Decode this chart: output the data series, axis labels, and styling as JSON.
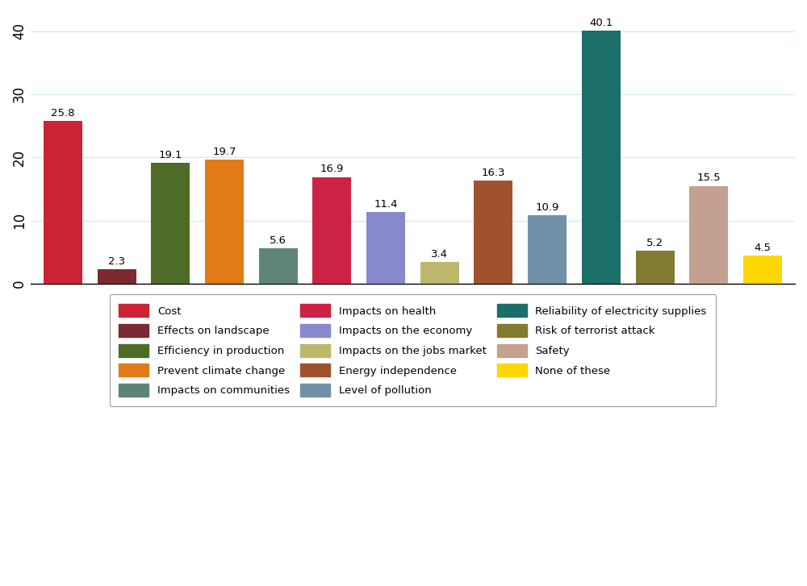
{
  "values": [
    25.8,
    2.3,
    19.1,
    19.7,
    5.6,
    16.9,
    11.4,
    3.4,
    16.3,
    10.9,
    40.1,
    5.2,
    15.5,
    4.5
  ],
  "colors": [
    "#CC2233",
    "#7A2A30",
    "#4E6B28",
    "#E07B18",
    "#5E8478",
    "#CC2244",
    "#8888CC",
    "#BDB76B",
    "#A0522D",
    "#7090A8",
    "#1B6E6A",
    "#827B30",
    "#C4A090",
    "#FFD700"
  ],
  "x_positions": [
    1,
    2,
    3,
    4,
    5,
    6,
    7,
    8,
    9,
    10,
    11,
    12,
    13,
    14
  ],
  "legend_entries_col1": [
    {
      "label": "Cost",
      "color": "#CC2233"
    },
    {
      "label": "Prevent climate change",
      "color": "#E07B18"
    },
    {
      "label": "Impacts on the economy",
      "color": "#8888CC"
    },
    {
      "label": "Level of pollution",
      "color": "#7090A8"
    },
    {
      "label": "Safety",
      "color": "#C4A090"
    }
  ],
  "legend_entries_col2": [
    {
      "label": "Effects on landscape",
      "color": "#7A2A30"
    },
    {
      "label": "Impacts on communities",
      "color": "#5E8478"
    },
    {
      "label": "Impacts on the jobs market",
      "color": "#BDB76B"
    },
    {
      "label": "Reliability of electricity supplies",
      "color": "#1B6E6A"
    },
    {
      "label": "None of these",
      "color": "#FFD700"
    }
  ],
  "legend_entries_col3": [
    {
      "label": "Efficiency in production",
      "color": "#4E6B28"
    },
    {
      "label": "Impacts on health",
      "color": "#CC2244"
    },
    {
      "label": "Energy independence",
      "color": "#A0522D"
    },
    {
      "label": "Risk of terrorist attack",
      "color": "#827B30"
    }
  ],
  "ylim": [
    0,
    43
  ],
  "yticks": [
    0,
    10,
    20,
    30,
    40
  ],
  "bar_width": 0.72,
  "background_color": "#ffffff",
  "grid_color": "#cce8f0"
}
